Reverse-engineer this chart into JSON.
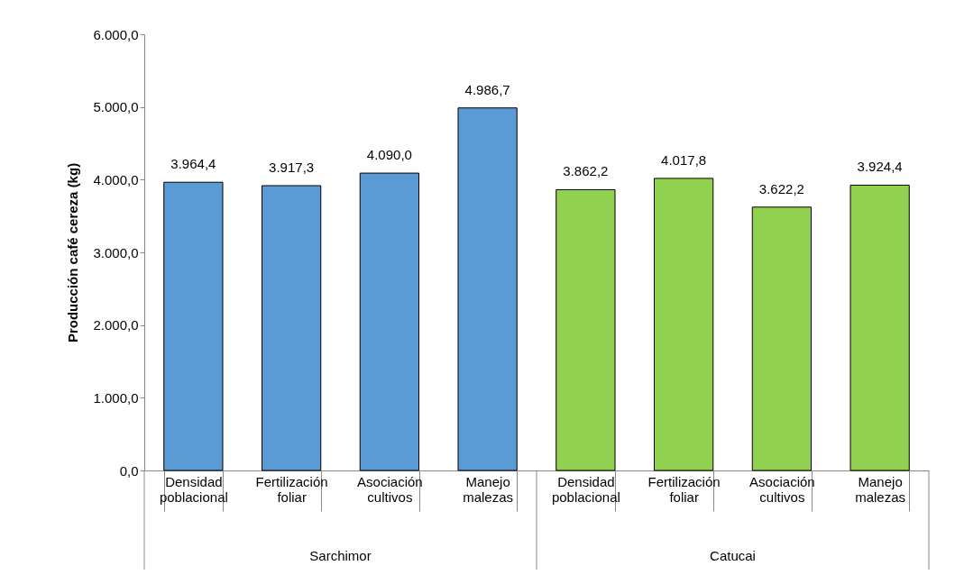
{
  "chart_data": {
    "type": "bar",
    "ylabel": "Producción café cereza (kg)",
    "categories": [
      "Densidad poblacional",
      "Fertilización foliar",
      "Asociación cultivos",
      "Manejo malezas",
      "Densidad poblacional",
      "Fertilización foliar",
      "Asociación cultivos",
      "Manejo malezas"
    ],
    "series": [
      {
        "color": "#5b9bd5",
        "values": [
          3964.4,
          3917.3,
          4090.0,
          4986.7,
          null,
          null,
          null,
          null
        ],
        "value_labels": [
          "3.964,4",
          "3.917,3",
          "4.090,0",
          "4.986,7",
          null,
          null,
          null,
          null
        ]
      },
      {
        "color": "#92d050",
        "values": [
          null,
          null,
          null,
          null,
          3862.2,
          4017.8,
          3622.2,
          3924.4
        ],
        "value_labels": [
          null,
          null,
          null,
          null,
          "3.862,2",
          "4.017,8",
          "3.622,2",
          "3.924,4"
        ]
      }
    ],
    "ylim": [
      0,
      6000
    ],
    "yticks": [
      {
        "value": 0,
        "label": "0,0"
      },
      {
        "value": 1000,
        "label": "1.000,0"
      },
      {
        "value": 2000,
        "label": "2.000,0"
      },
      {
        "value": 3000,
        "label": "3.000,0"
      },
      {
        "value": 4000,
        "label": "4.000,0"
      },
      {
        "value": 5000,
        "label": "5.000,0"
      },
      {
        "value": 6000,
        "label": "6.000,0"
      }
    ],
    "annotations": [
      "Sarchimor",
      "Catucai"
    ],
    "grid": false,
    "legend": false
  }
}
